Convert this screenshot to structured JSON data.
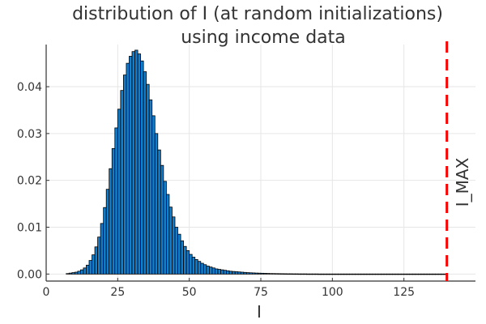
{
  "chart_data": {
    "type": "bar",
    "title_lines": [
      "distribution of I (at random initializations)",
      "using income data"
    ],
    "xlabel": "I",
    "ylabel": "",
    "xlim": [
      0,
      150
    ],
    "ylim": [
      -0.0015,
      0.049
    ],
    "xticks": [
      0,
      25,
      50,
      75,
      100,
      125
    ],
    "xtick_labels": [
      "0",
      "25",
      "50",
      "75",
      "100",
      "125"
    ],
    "yticks": [
      0,
      0.01,
      0.02,
      0.03,
      0.04
    ],
    "ytick_labels": [
      "0.00",
      "0.01",
      "0.02",
      "0.03",
      "0.04"
    ],
    "grid": true,
    "legend": false,
    "bar_color": "#0f7fd1",
    "bin_width": 1,
    "histogram": {
      "bin_start": [
        7,
        8,
        9,
        10,
        11,
        12,
        13,
        14,
        15,
        16,
        17,
        18,
        19,
        20,
        21,
        22,
        23,
        24,
        25,
        26,
        27,
        28,
        29,
        30,
        31,
        32,
        33,
        34,
        35,
        36,
        37,
        38,
        39,
        40,
        41,
        42,
        43,
        44,
        45,
        46,
        47,
        48,
        49,
        50,
        51,
        52,
        53,
        54,
        55,
        56,
        57,
        58,
        59,
        60,
        61,
        62,
        63,
        64,
        65,
        66,
        67,
        68,
        69,
        70,
        71,
        72,
        73,
        74,
        75,
        76,
        77,
        78,
        79,
        80,
        81,
        82,
        83,
        84,
        85,
        86,
        87,
        88,
        89,
        90,
        91,
        92,
        93,
        94,
        95,
        96,
        97,
        98,
        99,
        100,
        101,
        102,
        103,
        104,
        105,
        106,
        107,
        108,
        109,
        110,
        111,
        112,
        113,
        114,
        115,
        116,
        117,
        118,
        119,
        120,
        121,
        122,
        123,
        124,
        125,
        126,
        127,
        128,
        129,
        130,
        131,
        132,
        133,
        134,
        135,
        136,
        137,
        138,
        139
      ],
      "density": [
        0.0001,
        0.0002,
        0.0003,
        0.0004,
        0.0006,
        0.0009,
        0.0013,
        0.0019,
        0.0029,
        0.0041,
        0.0058,
        0.0079,
        0.0108,
        0.0142,
        0.0181,
        0.0225,
        0.0268,
        0.0312,
        0.0352,
        0.0392,
        0.0425,
        0.045,
        0.0465,
        0.0475,
        0.0478,
        0.047,
        0.0455,
        0.0432,
        0.0405,
        0.0372,
        0.0338,
        0.03,
        0.0265,
        0.0232,
        0.0198,
        0.017,
        0.0143,
        0.0122,
        0.01,
        0.0085,
        0.0071,
        0.0059,
        0.005,
        0.0042,
        0.0036,
        0.0031,
        0.0027,
        0.0023,
        0.002,
        0.0017,
        0.0015,
        0.0013,
        0.0011,
        0.001,
        0.0009,
        0.0008,
        0.0007,
        0.0006,
        0.00055,
        0.0005,
        0.00045,
        0.0004,
        0.00035,
        0.0003,
        0.00027,
        0.00024,
        0.00021,
        0.00019,
        0.00017,
        0.00015,
        0.00013,
        0.00011,
        0.0001,
        9e-05,
        8e-05,
        7e-05,
        6e-05,
        5e-05,
        5e-05,
        4e-05,
        4e-05,
        3e-05,
        3e-05,
        3e-05,
        2e-05,
        2e-05,
        2e-05,
        2e-05,
        1e-05,
        1e-05,
        1e-05,
        1e-05,
        1e-05,
        1e-05,
        1e-05,
        1e-05,
        1e-05,
        1e-05,
        1e-05,
        1e-05,
        1e-05,
        1e-05,
        1e-05,
        1e-05,
        1e-05,
        1e-05,
        1e-05,
        1e-05,
        1e-05,
        1e-05,
        1e-05,
        1e-05,
        1e-05,
        1e-05,
        1e-05,
        1e-05,
        1e-05,
        1e-05,
        1e-05,
        1e-05,
        1e-05,
        1e-05,
        1e-05,
        1e-05,
        1e-05,
        1e-05,
        1e-05,
        1e-05,
        1e-05,
        1e-05,
        1e-05,
        1e-05,
        1e-05
      ]
    },
    "vline": {
      "x": 140,
      "label": "I_MAX",
      "color": "#ff0000",
      "style": "dashed"
    }
  }
}
